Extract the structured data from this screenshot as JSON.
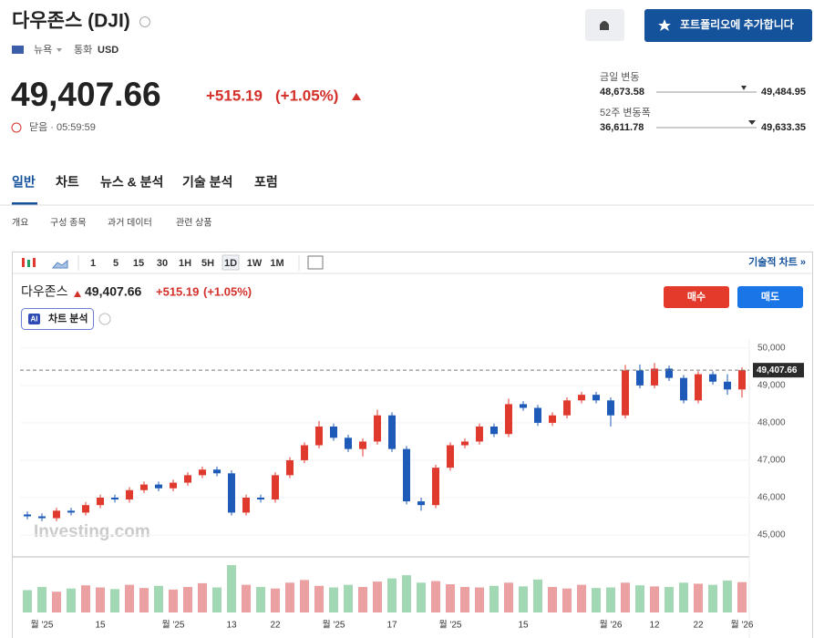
{
  "header": {
    "title": "다우존스 (DJI)",
    "exchange": "뉴욕",
    "currency_label": "통화",
    "currency": "USD",
    "price": "49,407.66",
    "change": "+515.19",
    "change_pct": "(+1.05%)",
    "status": "닫음 · 05:59:59",
    "portfolio_button": "포트폴리오에 추가합니다"
  },
  "ranges": [
    {
      "label": "금일 변동",
      "low": "48,673.58",
      "high": "49,484.95"
    },
    {
      "label": "52주 변동폭",
      "low": "36,611.78",
      "high": "49,633.35"
    }
  ],
  "tabs": [
    "일반",
    "차트",
    "뉴스 & 분석",
    "기술 분석",
    "포럼"
  ],
  "subtabs": [
    "개요",
    "구성 종목",
    "과거 데이터",
    "관련 상품"
  ],
  "toolbar": {
    "intervals": [
      "1",
      "5",
      "15",
      "30",
      "1H",
      "5H",
      "1D",
      "1W",
      "1M"
    ],
    "link": "기술적 차트 »"
  },
  "legend": {
    "name": "다우존스",
    "price": "49,407.66",
    "change": "+515.19",
    "change_pct": "(+1.05%)"
  },
  "buy": "매수",
  "sell": "매도",
  "ai_badge": "AI",
  "ai_label": "차트 분석",
  "watermark": "Investing.com",
  "chart_data": {
    "type": "candlestick",
    "categories": [
      null,
      "월 '25",
      null,
      null,
      null,
      "15",
      null,
      null,
      null,
      null,
      "월 '25",
      null,
      null,
      null,
      "13",
      null,
      null,
      "22",
      null,
      null,
      null,
      "월 '25",
      null,
      null,
      null,
      "17",
      null,
      null,
      null,
      "월 '25",
      null,
      null,
      null,
      null,
      "15",
      null,
      null,
      null,
      null,
      null,
      "월 '26",
      null,
      null,
      "12",
      null,
      null,
      "22",
      null,
      null,
      "월 '26"
    ],
    "open": [
      45550,
      45500,
      45450,
      45650,
      45600,
      45800,
      46000,
      45950,
      46200,
      46350,
      46250,
      46400,
      46600,
      46750,
      46650,
      45600,
      46000,
      45950,
      46600,
      47000,
      47400,
      47900,
      47600,
      47300,
      47500,
      48200,
      47300,
      45900,
      45800,
      46800,
      47400,
      47500,
      47900,
      47700,
      48500,
      48400,
      48000,
      48200,
      48600,
      48750,
      48600,
      48200,
      49400,
      49000,
      49450,
      49200,
      48600,
      49300,
      49100,
      48892.47
    ],
    "high": [
      45630,
      45580,
      45730,
      45730,
      45880,
      46080,
      46080,
      46280,
      46430,
      46430,
      46480,
      46680,
      46830,
      46830,
      46730,
      46080,
      46080,
      46680,
      47080,
      47480,
      48050,
      47980,
      47680,
      47580,
      48350,
      48280,
      47380,
      46000,
      46880,
      47480,
      47580,
      47980,
      47980,
      48650,
      48580,
      48480,
      48280,
      48680,
      48830,
      48830,
      48680,
      49550,
      49560,
      49600,
      49530,
      49280,
      49380,
      49380,
      49300,
      49484.95
    ],
    "low": [
      45420,
      45370,
      45370,
      45520,
      45520,
      45720,
      45870,
      45870,
      46120,
      46170,
      46170,
      46320,
      46520,
      46570,
      45520,
      45520,
      45870,
      45870,
      46520,
      46920,
      47320,
      47520,
      47220,
      47100,
      47420,
      47220,
      45820,
      45650,
      45720,
      46720,
      47320,
      47420,
      47620,
      47620,
      48320,
      47920,
      47920,
      48120,
      48520,
      48520,
      47900,
      48120,
      48920,
      48920,
      49120,
      48520,
      48520,
      49020,
      48750,
      48673.58
    ],
    "close": [
      45500,
      45450,
      45650,
      45600,
      45800,
      46000,
      45950,
      46200,
      46350,
      46250,
      46400,
      46600,
      46750,
      46650,
      45600,
      46000,
      45950,
      46600,
      47000,
      47400,
      47900,
      47600,
      47300,
      47500,
      48200,
      47300,
      45900,
      45800,
      46800,
      47400,
      47500,
      47900,
      47700,
      48500,
      48400,
      48000,
      48200,
      48600,
      48750,
      48600,
      48200,
      49400,
      49000,
      49450,
      49200,
      48600,
      49300,
      49100,
      48892.47,
      49407.66
    ],
    "volume": [
      420,
      480,
      390,
      450,
      510,
      470,
      440,
      520,
      460,
      500,
      430,
      480,
      550,
      470,
      890,
      520,
      480,
      450,
      560,
      610,
      500,
      470,
      520,
      480,
      580,
      640,
      700,
      560,
      590,
      530,
      480,
      470,
      500,
      560,
      490,
      620,
      480,
      450,
      520,
      460,
      470,
      560,
      510,
      490,
      480,
      560,
      540,
      520,
      600,
      570
    ],
    "up_color": "#e0392d",
    "down_color": "#1e5bb8",
    "volume_up_color": "#eba1a1",
    "volume_down_color": "#a3d8b4",
    "ylim": [
      44440,
      50240
    ],
    "yticks": [
      {
        "value": 45000,
        "label": "45,000"
      },
      {
        "value": 46000,
        "label": "46,000"
      },
      {
        "value": 47000,
        "label": "47,000"
      },
      {
        "value": 48000,
        "label": "48,000"
      },
      {
        "value": 49000,
        "label": "49,000"
      },
      {
        "value": 50000,
        "label": "50,000"
      }
    ],
    "last_price": {
      "value": 49407.66,
      "label": "49,407.66"
    }
  }
}
